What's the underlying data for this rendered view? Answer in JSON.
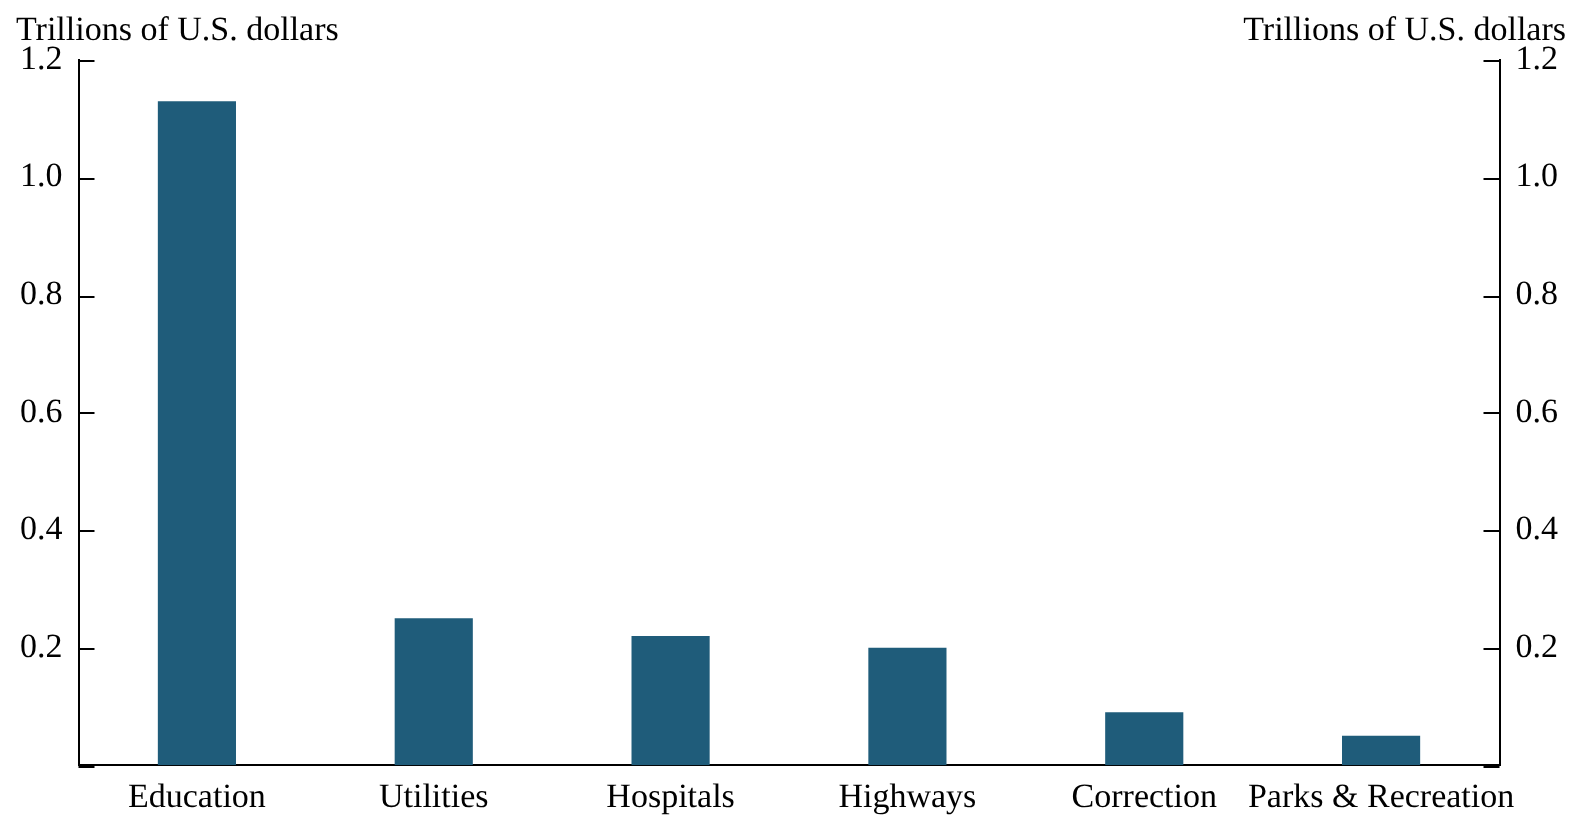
{
  "chart_data": {
    "type": "bar",
    "ylabel": "Trillions of U.S. dollars",
    "y2label": "Trillions of U.S. dollars",
    "categories": [
      "Education",
      "Utilities",
      "Hospitals",
      "Highways",
      "Correction",
      "Parks & Recreation"
    ],
    "values": [
      1.13,
      0.25,
      0.22,
      0.2,
      0.09,
      0.05
    ],
    "color": "#1f5c7a",
    "ylim": [
      0,
      1.2
    ],
    "yticks": [
      {
        "value": 0,
        "label": null
      },
      0.2,
      0.4,
      0.6,
      0.8,
      {
        "value": 1,
        "label": "1.0"
      },
      1.2
    ],
    "y2lim": [
      0,
      1.2
    ],
    "y2ticks": [
      {
        "value": 0,
        "label": null
      },
      0.2,
      0.4,
      0.6,
      0.8,
      {
        "value": 1,
        "label": "1.0"
      },
      1.2
    ],
    "grid": false,
    "legend": false
  }
}
